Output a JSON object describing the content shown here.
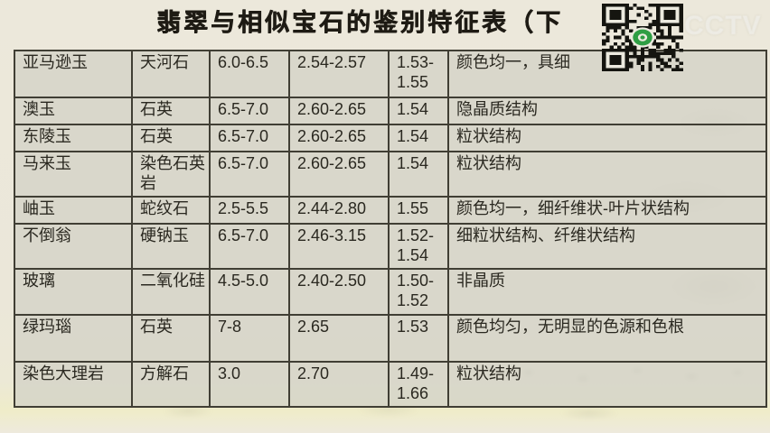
{
  "title": "翡翠与相似宝石的鉴别特征表（下",
  "watermark": "CCTV",
  "table": {
    "rows": [
      [
        "亚马逊玉",
        "天河石",
        "6.0-6.5",
        "2.54-2.57",
        "1.53-1.55",
        "颜色均一，具细"
      ],
      [
        "澳玉",
        "石英",
        "6.5-7.0",
        "2.60-2.65",
        "1.54",
        "隐晶质结构"
      ],
      [
        "东陵玉",
        "石英",
        "6.5-7.0",
        "2.60-2.65",
        "1.54",
        "粒状结构"
      ],
      [
        "马来玉",
        "染色石英岩",
        "6.5-7.0",
        "2.60-2.65",
        "1.54",
        "粒状结构"
      ],
      [
        "岫玉",
        "蛇纹石",
        "2.5-5.5",
        "2.44-2.80",
        "1.55",
        "颜色均一，细纤维状-叶片状结构"
      ],
      [
        "不倒翁",
        "硬钠玉",
        "6.5-7.0",
        "2.46-3.15",
        "1.52-1.54",
        "细粒状结构、纤维状结构"
      ],
      [
        "玻璃",
        "二氧化硅",
        "4.5-5.0",
        "2.40-2.50",
        "1.50-1.52",
        "非晶质"
      ],
      [
        "绿玛瑙",
        "石英",
        "7-8",
        "2.65",
        "1.53",
        "颜色均匀，无明显的色源和色根"
      ],
      [
        "染色大理岩",
        "方解石",
        "3.0",
        "2.70",
        "1.49-1.66",
        "粒状结构"
      ]
    ]
  },
  "colors": {
    "page_bg": "#ece8db",
    "cell_bg": "#d3d2c7",
    "border": "#403e34",
    "text": "#2a2820",
    "qr_dark": "#151510",
    "qr_logo_green": "#2f9e44"
  }
}
